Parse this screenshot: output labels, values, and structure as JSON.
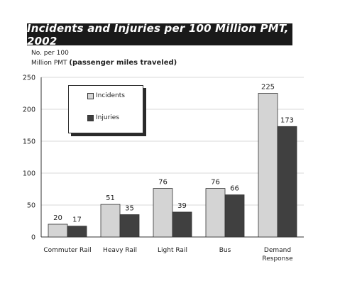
{
  "chart_data": {
    "type": "bar",
    "title": "Incidents and Injuries per 100 Million PMT, 2002",
    "ylabel_line1": "No. per 100",
    "ylabel_line2": "Million PMT",
    "ylabel_note": "(passenger miles traveled)",
    "categories": [
      "Commuter Rail",
      "Heavy Rail",
      "Light Rail",
      "Bus",
      "Demand Response"
    ],
    "series": [
      {
        "name": "Incidents",
        "color": "#d4d4d4",
        "values": [
          20,
          51,
          76,
          76,
          225
        ]
      },
      {
        "name": "Injuries",
        "color": "#404040",
        "values": [
          17,
          35,
          39,
          66,
          173
        ]
      }
    ],
    "ylim": [
      0,
      250
    ],
    "yticks": [
      0,
      50,
      100,
      150,
      200,
      250
    ],
    "grid": true,
    "legend_position": "top-left"
  }
}
